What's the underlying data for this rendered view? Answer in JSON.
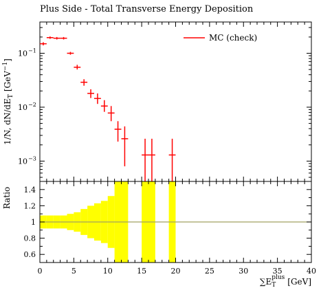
{
  "chart_data": [
    {
      "type": "scatter",
      "title": "Plus Side - Total Transverse Energy Deposition",
      "xlabel": "",
      "ylabel": "1/N, dN/dE_T [GeV^-1]",
      "ylabel_parts": {
        "main": "1/N, dN/dE",
        "sub": "T",
        "unit": "[GeV",
        "unit_sup": "−1",
        "unit_close": "]"
      },
      "ylog": true,
      "ylim": [
        0.00042,
        0.38
      ],
      "xlim": [
        0,
        40
      ],
      "grid": false,
      "legend_position": "top-right",
      "yticks": [
        0.001,
        0.01,
        0.1
      ],
      "ytick_labels": [
        "10",
        "10",
        "10"
      ],
      "ytick_exponents": [
        "−3",
        "−2",
        "−1"
      ],
      "series": [
        {
          "name": "MC (check)",
          "color": "#ff0000",
          "points": [
            {
              "x": 0.5,
              "xerr": 0.5,
              "y": 0.15,
              "ylo": 0.14,
              "yhi": 0.16
            },
            {
              "x": 1.5,
              "xerr": 0.5,
              "y": 0.195,
              "ylo": 0.185,
              "yhi": 0.205
            },
            {
              "x": 2.5,
              "xerr": 0.5,
              "y": 0.19,
              "ylo": 0.18,
              "yhi": 0.2
            },
            {
              "x": 3.5,
              "xerr": 0.5,
              "y": 0.19,
              "ylo": 0.18,
              "yhi": 0.2
            },
            {
              "x": 4.5,
              "xerr": 0.5,
              "y": 0.1,
              "ylo": 0.094,
              "yhi": 0.106
            },
            {
              "x": 5.5,
              "xerr": 0.5,
              "y": 0.055,
              "ylo": 0.05,
              "yhi": 0.061
            },
            {
              "x": 6.5,
              "xerr": 0.5,
              "y": 0.029,
              "ylo": 0.025,
              "yhi": 0.033
            },
            {
              "x": 7.5,
              "xerr": 0.5,
              "y": 0.018,
              "ylo": 0.0148,
              "yhi": 0.0215
            },
            {
              "x": 8.5,
              "xerr": 0.5,
              "y": 0.0145,
              "ylo": 0.0115,
              "yhi": 0.018
            },
            {
              "x": 9.5,
              "xerr": 0.5,
              "y": 0.0105,
              "ylo": 0.0082,
              "yhi": 0.0135
            },
            {
              "x": 10.5,
              "xerr": 0.5,
              "y": 0.0078,
              "ylo": 0.0055,
              "yhi": 0.0105
            },
            {
              "x": 11.5,
              "xerr": 0.5,
              "y": 0.0039,
              "ylo": 0.0023,
              "yhi": 0.0055
            },
            {
              "x": 12.5,
              "xerr": 0.5,
              "y": 0.0026,
              "ylo": 0.0008,
              "yhi": 0.0044
            },
            {
              "x": 15.5,
              "xerr": 0.5,
              "y": 0.0013,
              "ylo": 0.00042,
              "yhi": 0.0026
            },
            {
              "x": 16.5,
              "xerr": 0.5,
              "y": 0.0013,
              "ylo": 0.00042,
              "yhi": 0.0026
            },
            {
              "x": 19.5,
              "xerr": 0.5,
              "y": 0.0013,
              "ylo": 0.00042,
              "yhi": 0.0026
            }
          ]
        }
      ]
    },
    {
      "type": "area",
      "title": "",
      "ylabel": "Ratio",
      "xlabel": "∑E_T^plus [GeV]",
      "xlabel_parts": {
        "sigma": "∑E",
        "sub": "T",
        "sup": "plus",
        "unit": "[GeV]"
      },
      "xlim": [
        0,
        40
      ],
      "ylim": [
        0.5,
        1.5
      ],
      "xticks": [
        0,
        5,
        10,
        15,
        20,
        25,
        30,
        35,
        40
      ],
      "xtick_labels": [
        "0",
        "5",
        "10",
        "15",
        "20",
        "25",
        "30",
        "35",
        "40"
      ],
      "yticks": [
        0.6,
        0.8,
        1,
        1.2,
        1.4
      ],
      "ytick_labels": [
        "0.6",
        "0.8",
        "1",
        "1.2",
        "1.4"
      ],
      "reference_line": 1,
      "reference_color": "#a0a060",
      "band_color": "#ffff00",
      "band": [
        {
          "x0": 0,
          "x1": 1,
          "lo": 0.92,
          "hi": 1.08
        },
        {
          "x0": 1,
          "x1": 2,
          "lo": 0.92,
          "hi": 1.08
        },
        {
          "x0": 2,
          "x1": 3,
          "lo": 0.92,
          "hi": 1.08
        },
        {
          "x0": 3,
          "x1": 4,
          "lo": 0.92,
          "hi": 1.08
        },
        {
          "x0": 4,
          "x1": 5,
          "lo": 0.9,
          "hi": 1.1
        },
        {
          "x0": 5,
          "x1": 6,
          "lo": 0.88,
          "hi": 1.12
        },
        {
          "x0": 6,
          "x1": 7,
          "lo": 0.84,
          "hi": 1.16
        },
        {
          "x0": 7,
          "x1": 8,
          "lo": 0.8,
          "hi": 1.2
        },
        {
          "x0": 8,
          "x1": 9,
          "lo": 0.77,
          "hi": 1.23
        },
        {
          "x0": 9,
          "x1": 10,
          "lo": 0.74,
          "hi": 1.26
        },
        {
          "x0": 10,
          "x1": 11,
          "lo": 0.68,
          "hi": 1.32
        },
        {
          "x0": 11,
          "x1": 12,
          "lo": 0.5,
          "hi": 1.5
        },
        {
          "x0": 12,
          "x1": 13,
          "lo": 0.5,
          "hi": 1.5
        },
        {
          "x0": 15,
          "x1": 17,
          "lo": 0.5,
          "hi": 1.5
        },
        {
          "x0": 19,
          "x1": 20,
          "lo": 0.5,
          "hi": 1.5
        }
      ]
    }
  ]
}
